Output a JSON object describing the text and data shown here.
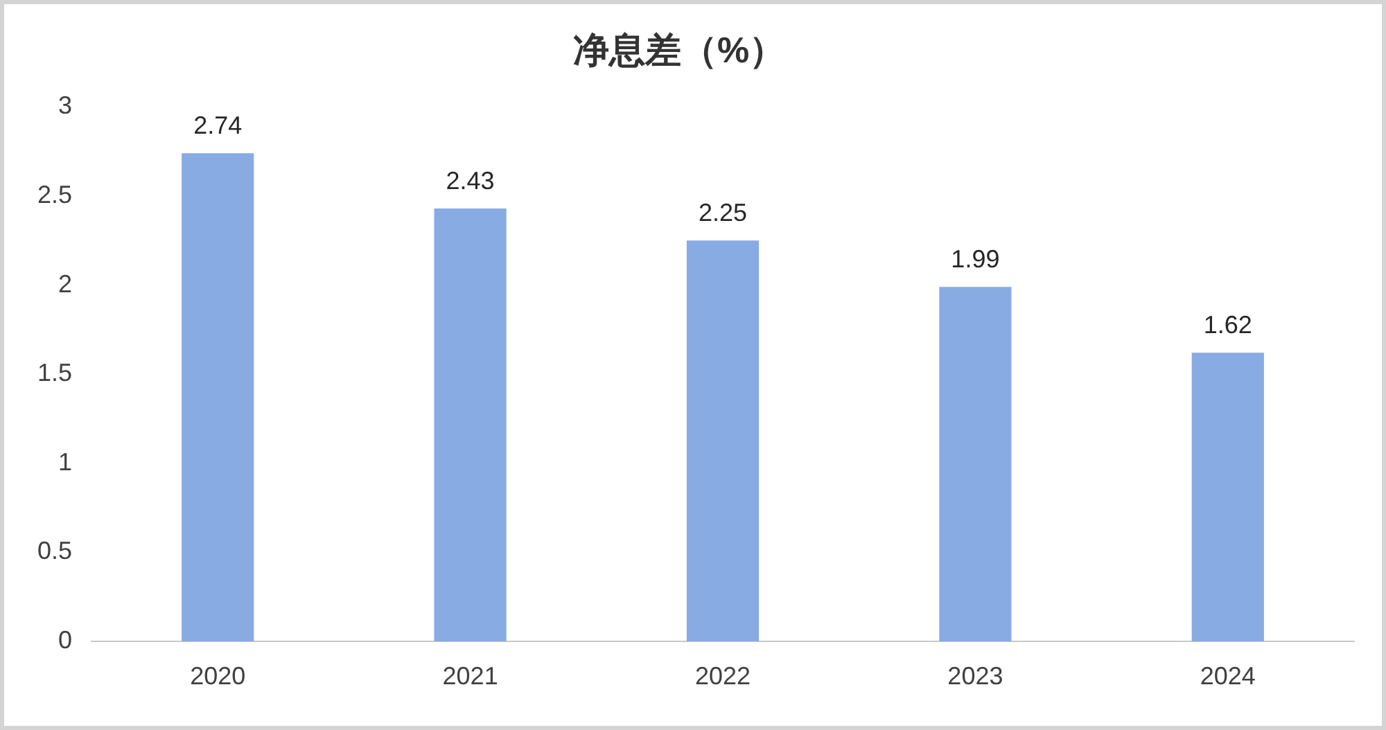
{
  "chart_data": {
    "type": "bar",
    "title": "净息差（%）",
    "categories": [
      "2020",
      "2021",
      "2022",
      "2023",
      "2024"
    ],
    "values": [
      2.74,
      2.43,
      2.25,
      1.99,
      1.62
    ],
    "color": "#88abe3",
    "ylim": [
      0,
      3
    ],
    "yticks": [
      0,
      0.5,
      1,
      1.5,
      2,
      2.5,
      3
    ],
    "grid": false,
    "legend": false,
    "data_labels": true
  }
}
